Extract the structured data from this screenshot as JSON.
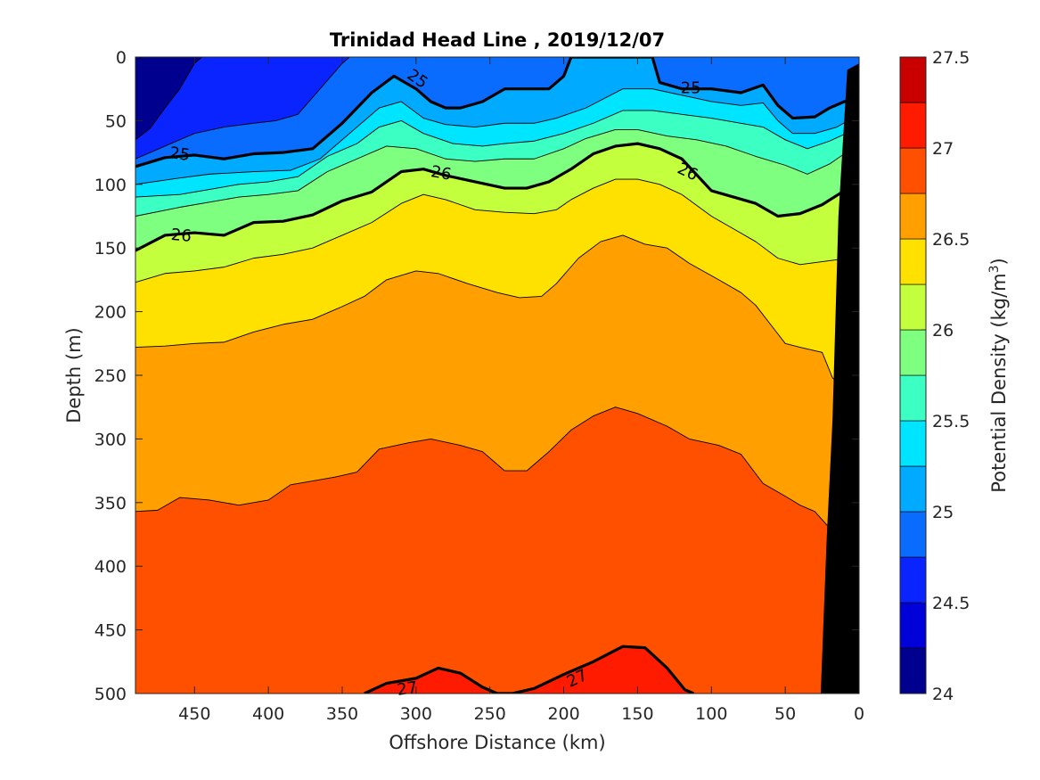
{
  "chart_data": {
    "type": "contour",
    "title": "Trinidad Head Line , 2019/12/07",
    "xlabel": "Offshore Distance (km)",
    "ylabel": "Depth (m)",
    "colorbar_label_main": "Potential Density (kg/m",
    "colorbar_label_sup": "3",
    "colorbar_label_close": ")",
    "xlim": [
      490,
      0
    ],
    "ylim": [
      0,
      500
    ],
    "x_reversed": true,
    "y_reversed": true,
    "x_ticks": [
      450,
      400,
      350,
      300,
      250,
      200,
      150,
      100,
      50,
      0
    ],
    "y_ticks": [
      0,
      50,
      100,
      150,
      200,
      250,
      300,
      350,
      400,
      450,
      500
    ],
    "colorbar_range": [
      24,
      27.5
    ],
    "colorbar_ticks": [
      24,
      24.5,
      25,
      25.5,
      26,
      26.5,
      27,
      27.5
    ],
    "levels": [
      24,
      24.25,
      24.5,
      24.75,
      25,
      25.25,
      25.5,
      25.75,
      26,
      26.25,
      26.5,
      26.75,
      27,
      27.25,
      27.5
    ],
    "colors": [
      "#00008f",
      "#0000d8",
      "#0a24ff",
      "#0a6cff",
      "#00aaff",
      "#00e5ff",
      "#3cffc3",
      "#7fff80",
      "#c3ff3c",
      "#ffe100",
      "#ff9f00",
      "#ff5000",
      "#ff1b00",
      "#c80000"
    ],
    "bathymetry_color": "#000000",
    "contour_labels": [
      {
        "text": "25",
        "x": 460,
        "y": 76,
        "angle": 8
      },
      {
        "text": "25",
        "x": 299,
        "y": 17,
        "angle": 35
      },
      {
        "text": "25",
        "x": 114,
        "y": 24,
        "angle": 0
      },
      {
        "text": "26",
        "x": 459,
        "y": 140,
        "angle": 5
      },
      {
        "text": "26",
        "x": 283,
        "y": 91,
        "angle": 10
      },
      {
        "text": "26",
        "x": 116,
        "y": 90,
        "angle": 25
      },
      {
        "text": "27",
        "x": 306,
        "y": 496,
        "angle": -8
      },
      {
        "text": "27",
        "x": 191,
        "y": 488,
        "angle": -25
      }
    ],
    "isopycnals": [
      {
        "level": 24.25,
        "points": [
          [
            490,
            2
          ],
          [
            485,
            0
          ]
        ]
      },
      {
        "level": 24.5,
        "points": [
          [
            490,
            65
          ],
          [
            480,
            56
          ],
          [
            470,
            40
          ],
          [
            460,
            25
          ],
          [
            450,
            5
          ],
          [
            445,
            0
          ]
        ]
      },
      {
        "level": 24.75,
        "points": [
          [
            490,
            80
          ],
          [
            470,
            70
          ],
          [
            450,
            60
          ],
          [
            430,
            55
          ],
          [
            410,
            52
          ],
          [
            395,
            50
          ],
          [
            380,
            45
          ],
          [
            365,
            25
          ],
          [
            350,
            5
          ],
          [
            345,
            0
          ]
        ]
      },
      {
        "level": 25,
        "points": [
          [
            490,
            86
          ],
          [
            470,
            79
          ],
          [
            450,
            77
          ],
          [
            430,
            80
          ],
          [
            410,
            76
          ],
          [
            390,
            75
          ],
          [
            370,
            72
          ],
          [
            350,
            52
          ],
          [
            330,
            28
          ],
          [
            315,
            15
          ],
          [
            300,
            25
          ],
          [
            290,
            35
          ],
          [
            280,
            40
          ],
          [
            270,
            40
          ],
          [
            255,
            35
          ],
          [
            240,
            25
          ],
          [
            230,
            25
          ],
          [
            220,
            25
          ],
          [
            210,
            25
          ],
          [
            200,
            15
          ],
          [
            195,
            0
          ],
          [
            140,
            0
          ],
          [
            135,
            20
          ],
          [
            120,
            25
          ],
          [
            100,
            25
          ],
          [
            80,
            28
          ],
          [
            65,
            22
          ],
          [
            55,
            38
          ],
          [
            45,
            48
          ],
          [
            30,
            47
          ],
          [
            20,
            40
          ],
          [
            10,
            35
          ],
          [
            0,
            33
          ]
        ]
      },
      {
        "level": 25.25,
        "points": [
          [
            490,
            100
          ],
          [
            460,
            95
          ],
          [
            440,
            92
          ],
          [
            410,
            90
          ],
          [
            385,
            89
          ],
          [
            365,
            80
          ],
          [
            345,
            60
          ],
          [
            325,
            40
          ],
          [
            310,
            35
          ],
          [
            295,
            48
          ],
          [
            280,
            53
          ],
          [
            260,
            55
          ],
          [
            240,
            52
          ],
          [
            220,
            52
          ],
          [
            205,
            48
          ],
          [
            185,
            40
          ],
          [
            160,
            25
          ],
          [
            140,
            25
          ],
          [
            120,
            30
          ],
          [
            100,
            35
          ],
          [
            80,
            38
          ],
          [
            65,
            36
          ],
          [
            55,
            50
          ],
          [
            45,
            60
          ],
          [
            30,
            60
          ],
          [
            15,
            55
          ],
          [
            0,
            45
          ]
        ]
      },
      {
        "level": 25.5,
        "points": [
          [
            490,
            110
          ],
          [
            460,
            108
          ],
          [
            440,
            104
          ],
          [
            420,
            100
          ],
          [
            400,
            98
          ],
          [
            380,
            94
          ],
          [
            360,
            78
          ],
          [
            340,
            68
          ],
          [
            325,
            55
          ],
          [
            310,
            50
          ],
          [
            295,
            60
          ],
          [
            275,
            68
          ],
          [
            255,
            70
          ],
          [
            240,
            68
          ],
          [
            220,
            66
          ],
          [
            200,
            60
          ],
          [
            180,
            52
          ],
          [
            160,
            42
          ],
          [
            140,
            42
          ],
          [
            120,
            45
          ],
          [
            100,
            48
          ],
          [
            80,
            52
          ],
          [
            65,
            55
          ],
          [
            50,
            65
          ],
          [
            35,
            72
          ],
          [
            20,
            66
          ],
          [
            5,
            58
          ],
          [
            0,
            55
          ]
        ]
      },
      {
        "level": 25.75,
        "points": [
          [
            490,
            125
          ],
          [
            460,
            118
          ],
          [
            440,
            114
          ],
          [
            420,
            110
          ],
          [
            400,
            108
          ],
          [
            380,
            105
          ],
          [
            360,
            90
          ],
          [
            340,
            80
          ],
          [
            320,
            70
          ],
          [
            300,
            72
          ],
          [
            280,
            80
          ],
          [
            260,
            82
          ],
          [
            240,
            80
          ],
          [
            220,
            80
          ],
          [
            200,
            72
          ],
          [
            185,
            64
          ],
          [
            165,
            57
          ],
          [
            150,
            57
          ],
          [
            130,
            62
          ],
          [
            110,
            65
          ],
          [
            90,
            70
          ],
          [
            70,
            78
          ],
          [
            50,
            85
          ],
          [
            35,
            92
          ],
          [
            20,
            84
          ],
          [
            5,
            72
          ],
          [
            0,
            68
          ]
        ]
      },
      {
        "level": 26,
        "points": [
          [
            490,
            152
          ],
          [
            470,
            140
          ],
          [
            450,
            138
          ],
          [
            430,
            140
          ],
          [
            410,
            130
          ],
          [
            390,
            129
          ],
          [
            370,
            124
          ],
          [
            350,
            113
          ],
          [
            330,
            106
          ],
          [
            310,
            90
          ],
          [
            295,
            88
          ],
          [
            280,
            93
          ],
          [
            260,
            98
          ],
          [
            240,
            103
          ],
          [
            225,
            103
          ],
          [
            210,
            98
          ],
          [
            195,
            88
          ],
          [
            180,
            76
          ],
          [
            165,
            70
          ],
          [
            150,
            68
          ],
          [
            135,
            72
          ],
          [
            120,
            80
          ],
          [
            100,
            105
          ],
          [
            85,
            110
          ],
          [
            70,
            115
          ],
          [
            55,
            125
          ],
          [
            40,
            123
          ],
          [
            25,
            116
          ],
          [
            10,
            105
          ],
          [
            0,
            100
          ]
        ]
      },
      {
        "level": 26.25,
        "points": [
          [
            490,
            177
          ],
          [
            470,
            170
          ],
          [
            450,
            168
          ],
          [
            430,
            165
          ],
          [
            410,
            158
          ],
          [
            390,
            155
          ],
          [
            370,
            150
          ],
          [
            350,
            140
          ],
          [
            330,
            130
          ],
          [
            310,
            115
          ],
          [
            295,
            108
          ],
          [
            280,
            112
          ],
          [
            260,
            120
          ],
          [
            240,
            122
          ],
          [
            220,
            123
          ],
          [
            205,
            120
          ],
          [
            195,
            112
          ],
          [
            180,
            103
          ],
          [
            165,
            96
          ],
          [
            150,
            96
          ],
          [
            135,
            100
          ],
          [
            120,
            108
          ],
          [
            100,
            125
          ],
          [
            85,
            135
          ],
          [
            70,
            145
          ],
          [
            55,
            158
          ],
          [
            40,
            163
          ],
          [
            20,
            160
          ],
          [
            0,
            157
          ]
        ]
      },
      {
        "level": 26.5,
        "points": [
          [
            490,
            228
          ],
          [
            470,
            227
          ],
          [
            450,
            225
          ],
          [
            430,
            224
          ],
          [
            410,
            216
          ],
          [
            390,
            210
          ],
          [
            370,
            206
          ],
          [
            350,
            196
          ],
          [
            335,
            188
          ],
          [
            320,
            175
          ],
          [
            300,
            168
          ],
          [
            285,
            170
          ],
          [
            265,
            178
          ],
          [
            245,
            185
          ],
          [
            230,
            189
          ],
          [
            215,
            188
          ],
          [
            205,
            178
          ],
          [
            190,
            158
          ],
          [
            175,
            145
          ],
          [
            160,
            140
          ],
          [
            145,
            147
          ],
          [
            130,
            150
          ],
          [
            115,
            162
          ],
          [
            95,
            175
          ],
          [
            80,
            185
          ],
          [
            70,
            195
          ],
          [
            60,
            210
          ],
          [
            50,
            225
          ],
          [
            40,
            228
          ],
          [
            25,
            232
          ],
          [
            18,
            252
          ],
          [
            10,
            260
          ],
          [
            0,
            262
          ]
        ]
      },
      {
        "level": 26.75,
        "points": [
          [
            490,
            357
          ],
          [
            475,
            356
          ],
          [
            460,
            346
          ],
          [
            440,
            348
          ],
          [
            420,
            352
          ],
          [
            400,
            348
          ],
          [
            385,
            336
          ],
          [
            370,
            333
          ],
          [
            355,
            330
          ],
          [
            340,
            326
          ],
          [
            325,
            308
          ],
          [
            305,
            303
          ],
          [
            290,
            300
          ],
          [
            270,
            305
          ],
          [
            255,
            310
          ],
          [
            240,
            325
          ],
          [
            225,
            325
          ],
          [
            210,
            310
          ],
          [
            195,
            293
          ],
          [
            180,
            282
          ],
          [
            165,
            275
          ],
          [
            150,
            280
          ],
          [
            130,
            290
          ],
          [
            115,
            300
          ],
          [
            95,
            305
          ],
          [
            80,
            312
          ],
          [
            65,
            335
          ],
          [
            50,
            345
          ],
          [
            40,
            352
          ],
          [
            30,
            357
          ],
          [
            20,
            370
          ],
          [
            10,
            372
          ],
          [
            0,
            373
          ]
        ]
      },
      {
        "level": 27,
        "points": [
          [
            335,
            500
          ],
          [
            320,
            492
          ],
          [
            300,
            488
          ],
          [
            285,
            480
          ],
          [
            270,
            484
          ],
          [
            255,
            495
          ],
          [
            245,
            500
          ],
          [
            235,
            500
          ],
          [
            220,
            496
          ],
          [
            200,
            485
          ],
          [
            180,
            475
          ],
          [
            160,
            463
          ],
          [
            145,
            464
          ],
          [
            130,
            480
          ],
          [
            118,
            497
          ],
          [
            112,
            500
          ]
        ]
      }
    ],
    "bathymetry": [
      [
        0,
        5
      ],
      [
        8,
        10
      ],
      [
        14,
        125
      ],
      [
        18,
        285
      ],
      [
        22,
        380
      ],
      [
        26,
        500
      ],
      [
        0,
        500
      ]
    ]
  }
}
